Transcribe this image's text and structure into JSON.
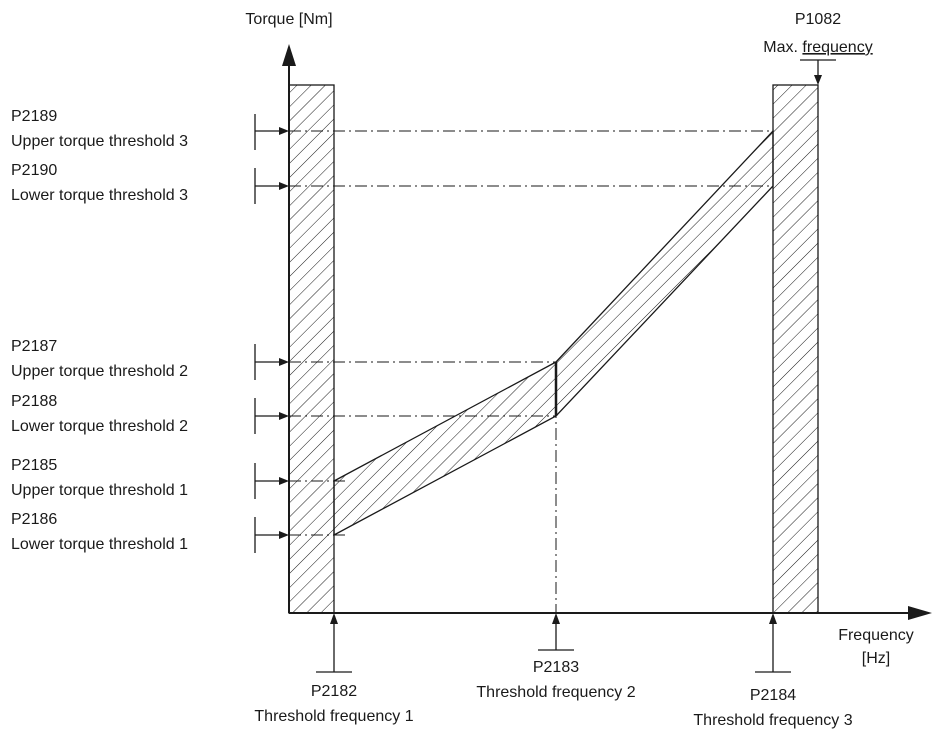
{
  "axes": {
    "y_label": "Torque [Nm]",
    "x_label_line1": "Frequency",
    "x_label_line2": "[Hz]"
  },
  "thresholds_torque": [
    {
      "param": "P2189",
      "label": "Upper torque threshold 3"
    },
    {
      "param": "P2190",
      "label": "Lower torque threshold 3"
    },
    {
      "param": "P2187",
      "label": "Upper torque threshold 2"
    },
    {
      "param": "P2188",
      "label": "Lower torque threshold 2"
    },
    {
      "param": "P2185",
      "label": "Upper torque threshold 1"
    },
    {
      "param": "P2186",
      "label": "Lower torque threshold 1"
    }
  ],
  "thresholds_frequency": [
    {
      "param": "P2182",
      "label": "Threshold frequency 1"
    },
    {
      "param": "P2183",
      "label": "Threshold frequency 2"
    },
    {
      "param": "P2184",
      "label": "Threshold frequency 3"
    }
  ],
  "max_frequency": {
    "param": "P1082",
    "label_prefix": "Max. ",
    "label_underlined": "frequency"
  },
  "colors": {
    "line": "#1a1a1a",
    "hatch": "#1a1a1a",
    "background": "#ffffff"
  }
}
